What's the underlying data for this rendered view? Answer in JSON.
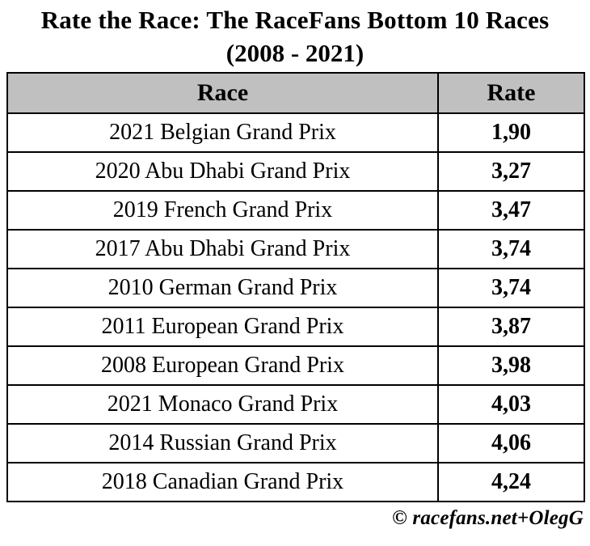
{
  "title": {
    "line1": "Rate the Race: The RaceFans Bottom 10 Races",
    "line2": "(2008 - 2021)"
  },
  "table": {
    "headers": {
      "race": "Race",
      "rate": "Rate"
    },
    "rows": [
      {
        "race": "2021 Belgian Grand Prix",
        "rate": "1,90"
      },
      {
        "race": "2020 Abu Dhabi Grand Prix",
        "rate": "3,27"
      },
      {
        "race": "2019 French Grand Prix",
        "rate": "3,47"
      },
      {
        "race": "2017 Abu Dhabi Grand Prix",
        "rate": "3,74"
      },
      {
        "race": "2010 German Grand Prix",
        "rate": "3,74"
      },
      {
        "race": "2011 European Grand Prix",
        "rate": "3,87"
      },
      {
        "race": "2008 European Grand Prix",
        "rate": "3,98"
      },
      {
        "race": "2021 Monaco Grand Prix",
        "rate": "4,03"
      },
      {
        "race": "2014 Russian Grand Prix",
        "rate": "4,06"
      },
      {
        "race": "2018 Canadian Grand Prix",
        "rate": "4,24"
      }
    ]
  },
  "footer": {
    "credit": "© racefans.net+OlegG"
  },
  "colors": {
    "header_bg": "#c0c0c0",
    "border": "#000000",
    "background": "#ffffff",
    "text": "#000000"
  },
  "chart_data": {
    "type": "table",
    "title": "Rate the Race: The RaceFans Bottom 10 Races (2008 - 2021)",
    "columns": [
      "Race",
      "Rate"
    ],
    "categories": [
      "2021 Belgian Grand Prix",
      "2020 Abu Dhabi Grand Prix",
      "2019 French Grand Prix",
      "2017 Abu Dhabi Grand Prix",
      "2010 German Grand Prix",
      "2011 European Grand Prix",
      "2008 European Grand Prix",
      "2021 Monaco Grand Prix",
      "2014 Russian Grand Prix",
      "2018 Canadian Grand Prix"
    ],
    "values": [
      1.9,
      3.27,
      3.47,
      3.74,
      3.74,
      3.87,
      3.98,
      4.03,
      4.06,
      4.24
    ],
    "value_format": "comma-decimal",
    "annotations": [
      "© racefans.net+OlegG"
    ]
  }
}
